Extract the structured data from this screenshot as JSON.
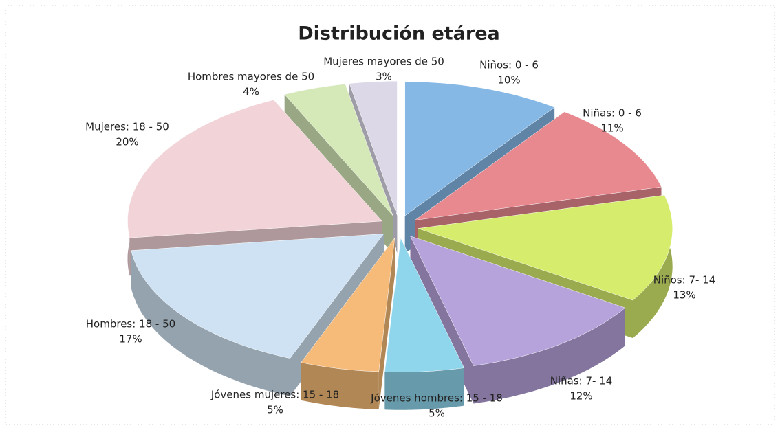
{
  "chart_data": {
    "type": "pie",
    "title": "Distribución etárea",
    "categories": [
      "Niños:  0 - 6",
      "Niñas:  0 - 6",
      "Niños:  7- 14",
      "Niñas:  7- 14",
      "Jóvenes hombres: 15 - 18",
      "Jóvenes mujeres: 15 - 18",
      "Hombres:  18 - 50",
      "Mujeres:  18 - 50",
      "Hombres mayores de  50",
      "Mujeres mayores de  50"
    ],
    "values": [
      10,
      11,
      13,
      12,
      5,
      5,
      17,
      20,
      4,
      3
    ],
    "value_labels": [
      "10%",
      "11%",
      "13%",
      "12%",
      "5%",
      "5%",
      "17%",
      "20%",
      "4%",
      "3%"
    ],
    "colors": [
      "#86b8e6",
      "#e8898f",
      "#d6ec6c",
      "#b7a3dc",
      "#8fd6ec",
      "#f6bb78",
      "#cfe2f3",
      "#f2d3d7",
      "#d5e8b8",
      "#dcd8e8"
    ]
  }
}
